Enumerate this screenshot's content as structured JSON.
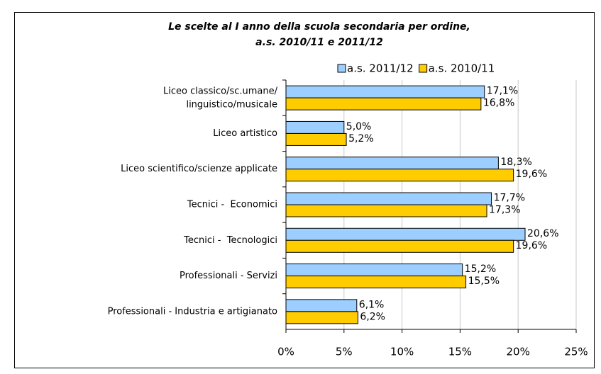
{
  "chart_data": {
    "type": "hbar",
    "title": "Le scelte al I anno della scuola secondaria per ordine,\na.s. 2010/11 e 2011/12",
    "categories": [
      "Liceo classico/sc.umane/\nlinguistico/musicale",
      "Liceo artistico",
      "Liceo scientifico/scienze applicate",
      "Tecnici -  Economici",
      "Tecnici -  Tecnologici",
      "Professionali - Servizi",
      "Professionali - Industria e artigianato"
    ],
    "series": [
      {
        "name": "a.s. 2011/12",
        "color": "#9ccfff",
        "label_color": "#3333cc",
        "values": [
          17.1,
          5.0,
          18.3,
          17.7,
          20.6,
          15.2,
          6.1
        ],
        "value_labels": [
          "17,1%",
          "5,0%",
          "18,3%",
          "17,7%",
          "20,6%",
          "15,2%",
          "6,1%"
        ]
      },
      {
        "name": "a.s. 2010/11",
        "color": "#ffcc00",
        "label_color": "#000000",
        "values": [
          16.8,
          5.2,
          19.6,
          17.3,
          19.6,
          15.5,
          6.2
        ],
        "value_labels": [
          "16,8%",
          "5,2%",
          "19,6%",
          "17,3%",
          "19,6%",
          "15,5%",
          "6,2%"
        ]
      }
    ],
    "xlim": [
      0,
      25
    ],
    "xticks": [
      {
        "value": 0,
        "label": "0%"
      },
      {
        "value": 5,
        "label": "5%"
      },
      {
        "value": 10,
        "label": "10%"
      },
      {
        "value": 15,
        "label": "15%"
      },
      {
        "value": 20,
        "label": "20%"
      },
      {
        "value": 25,
        "label": "25%"
      }
    ],
    "grid": true,
    "legend": "top-right"
  }
}
